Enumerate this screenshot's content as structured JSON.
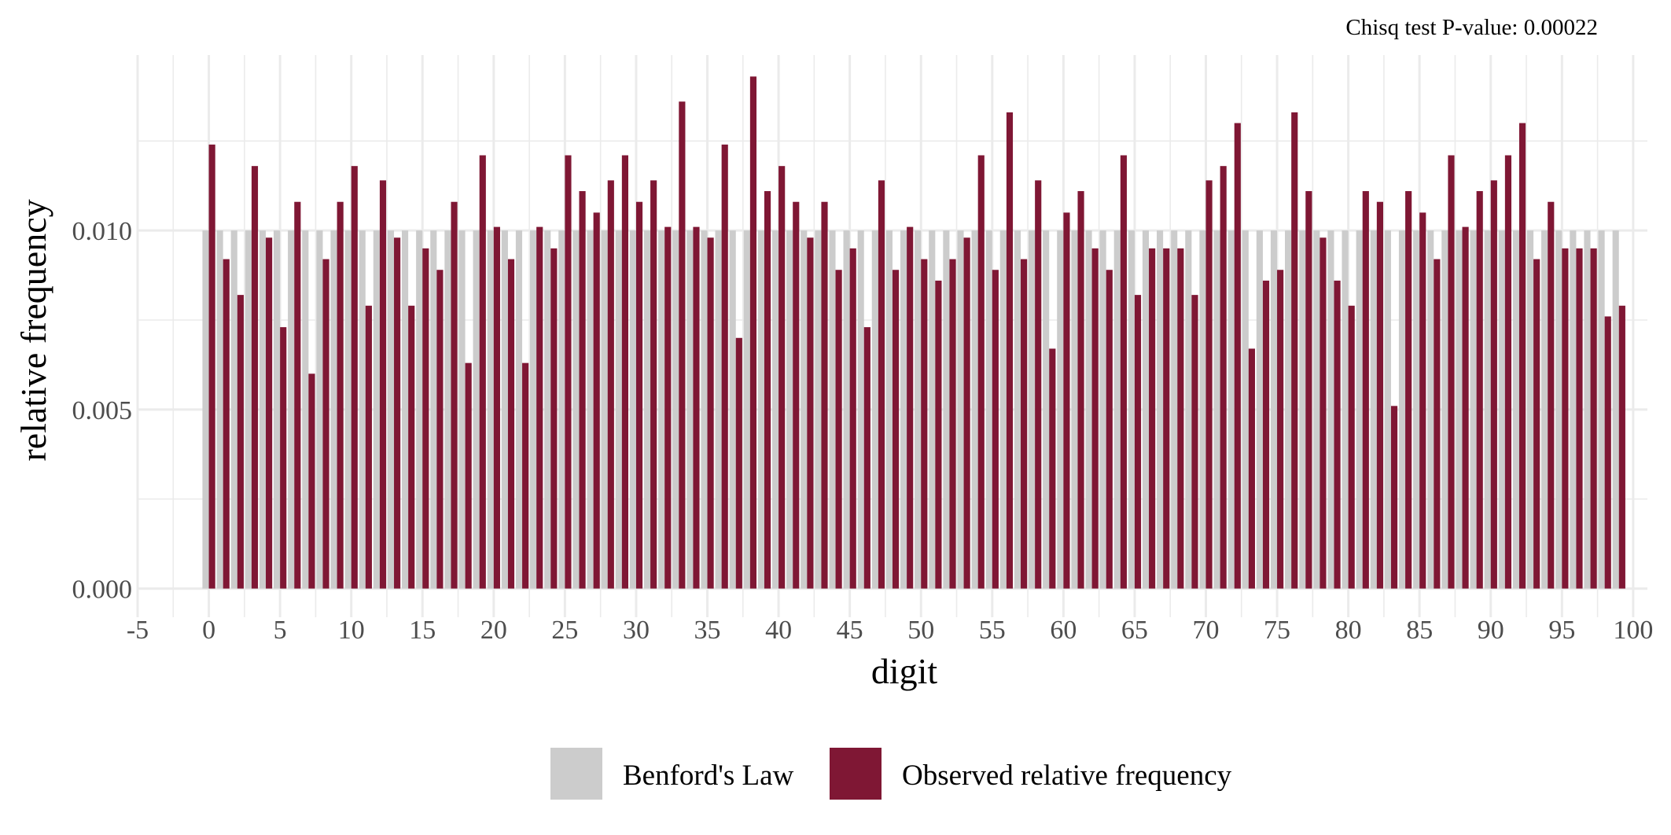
{
  "chart_data": {
    "type": "bar",
    "annotation": "Chisq test P-value: 0.00022",
    "xlabel": "digit",
    "ylabel": "relative frequency",
    "xlim": [
      -5,
      101
    ],
    "ylim": [
      -0.0008,
      0.0149
    ],
    "x_ticks": [
      "-5",
      "0",
      "5",
      "10",
      "15",
      "20",
      "25",
      "30",
      "35",
      "40",
      "45",
      "50",
      "55",
      "60",
      "65",
      "70",
      "75",
      "80",
      "85",
      "90",
      "95",
      "100"
    ],
    "x_tick_values": [
      -5,
      0,
      5,
      10,
      15,
      20,
      25,
      30,
      35,
      40,
      45,
      50,
      55,
      60,
      65,
      70,
      75,
      80,
      85,
      90,
      95,
      100
    ],
    "y_ticks": [
      "0.000",
      "0.005",
      "0.010"
    ],
    "y_tick_values": [
      0,
      0.005,
      0.01
    ],
    "grid": true,
    "legend_position": "bottom",
    "colors": {
      "benford": "#cccccc",
      "observed": "#7f1734",
      "grid": "#ebebeb"
    },
    "x": [
      0,
      1,
      2,
      3,
      4,
      5,
      6,
      7,
      8,
      9,
      10,
      11,
      12,
      13,
      14,
      15,
      16,
      17,
      18,
      19,
      20,
      21,
      22,
      23,
      24,
      25,
      26,
      27,
      28,
      29,
      30,
      31,
      32,
      33,
      34,
      35,
      36,
      37,
      38,
      39,
      40,
      41,
      42,
      43,
      44,
      45,
      46,
      47,
      48,
      49,
      50,
      51,
      52,
      53,
      54,
      55,
      56,
      57,
      58,
      59,
      60,
      61,
      62,
      63,
      64,
      65,
      66,
      67,
      68,
      69,
      70,
      71,
      72,
      73,
      74,
      75,
      76,
      77,
      78,
      79,
      80,
      81,
      82,
      83,
      84,
      85,
      86,
      87,
      88,
      89,
      90,
      91,
      92,
      93,
      94,
      95,
      96,
      97,
      98,
      99
    ],
    "series": [
      {
        "name": "Benford's Law",
        "values": [
          0.01,
          0.01,
          0.01,
          0.01,
          0.01,
          0.01,
          0.01,
          0.01,
          0.01,
          0.01,
          0.01,
          0.01,
          0.01,
          0.01,
          0.01,
          0.01,
          0.01,
          0.01,
          0.01,
          0.01,
          0.01,
          0.01,
          0.01,
          0.01,
          0.01,
          0.01,
          0.01,
          0.01,
          0.01,
          0.01,
          0.01,
          0.01,
          0.01,
          0.01,
          0.01,
          0.01,
          0.01,
          0.01,
          0.01,
          0.01,
          0.01,
          0.01,
          0.01,
          0.01,
          0.01,
          0.01,
          0.01,
          0.01,
          0.01,
          0.01,
          0.01,
          0.01,
          0.01,
          0.01,
          0.01,
          0.01,
          0.01,
          0.01,
          0.01,
          0.01,
          0.01,
          0.01,
          0.01,
          0.01,
          0.01,
          0.01,
          0.01,
          0.01,
          0.01,
          0.01,
          0.01,
          0.01,
          0.01,
          0.01,
          0.01,
          0.01,
          0.01,
          0.01,
          0.01,
          0.01,
          0.01,
          0.01,
          0.01,
          0.01,
          0.01,
          0.01,
          0.01,
          0.01,
          0.01,
          0.01,
          0.01,
          0.01,
          0.01,
          0.01,
          0.01,
          0.01,
          0.01,
          0.01,
          0.01,
          0.01
        ]
      },
      {
        "name": "Observed relative frequency",
        "values": [
          0.0124,
          0.0092,
          0.0082,
          0.0118,
          0.0098,
          0.0073,
          0.0108,
          0.006,
          0.0092,
          0.0108,
          0.0118,
          0.0079,
          0.0114,
          0.0098,
          0.0079,
          0.0095,
          0.0089,
          0.0108,
          0.0063,
          0.0121,
          0.0101,
          0.0092,
          0.0063,
          0.0101,
          0.0095,
          0.0121,
          0.0111,
          0.0105,
          0.0114,
          0.0121,
          0.0108,
          0.0114,
          0.0101,
          0.0136,
          0.0101,
          0.0098,
          0.0124,
          0.007,
          0.0143,
          0.0111,
          0.0118,
          0.0108,
          0.0098,
          0.0108,
          0.0089,
          0.0095,
          0.0073,
          0.0114,
          0.0089,
          0.0101,
          0.0092,
          0.0086,
          0.0092,
          0.0098,
          0.0121,
          0.0089,
          0.0133,
          0.0092,
          0.0114,
          0.0067,
          0.0105,
          0.0111,
          0.0095,
          0.0089,
          0.0121,
          0.0082,
          0.0095,
          0.0095,
          0.0095,
          0.0082,
          0.0114,
          0.0118,
          0.013,
          0.0067,
          0.0086,
          0.0089,
          0.0133,
          0.0111,
          0.0098,
          0.0086,
          0.0079,
          0.0111,
          0.0108,
          0.0051,
          0.0111,
          0.0105,
          0.0092,
          0.0121,
          0.0101,
          0.0111,
          0.0114,
          0.0121,
          0.013,
          0.0092,
          0.0108,
          0.0095,
          0.0095,
          0.0095,
          0.0076,
          0.0079
        ]
      }
    ]
  }
}
